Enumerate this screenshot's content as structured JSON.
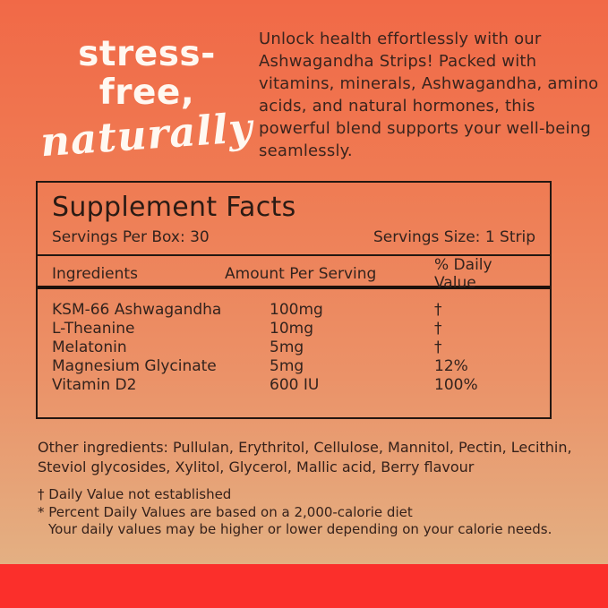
{
  "hero": {
    "headline_line1": "stress-free,",
    "headline_line2": "naturally",
    "description": "Unlock health effortlessly with our Ashwagandha Strips! Packed with vitamins, minerals, Ashwagandha, amino acids, and natural hormones, this powerful blend supports your well-being seamlessly."
  },
  "supplement_facts": {
    "title": "Supplement Facts",
    "servings_per_box": "Servings Per Box: 30",
    "serving_size": "Servings Size: 1 Strip",
    "columns": [
      "Ingredients",
      "Amount Per Serving",
      "% Daily Value"
    ],
    "rows": [
      {
        "ingredient": "KSM-66 Ashwagandha",
        "amount": "100mg",
        "daily_value": "†"
      },
      {
        "ingredient": "L-Theanine",
        "amount": "10mg",
        "daily_value": "†"
      },
      {
        "ingredient": "Melatonin",
        "amount": "5mg",
        "daily_value": "†"
      },
      {
        "ingredient": "Magnesium Glycinate",
        "amount": "5mg",
        "daily_value": "12%"
      },
      {
        "ingredient": "Vitamin D2",
        "amount": "600 IU",
        "daily_value": "100%"
      }
    ]
  },
  "other_ingredients": "Other ingredients: Pullulan, Erythritol, Cellulose, Mannitol, Pectin, Lecithin, Steviol glycosides, Xylitol, Glycerol, Mallic acid, Berry flavour",
  "footnotes": {
    "dagger_note": "† Daily Value not established",
    "asterisk_note_line1": "* Percent Daily Values are based on a 2,000-calorie diet",
    "asterisk_note_line2": "Your daily values may be higher or lower depending on your calorie needs."
  },
  "colors": {
    "gradient_top": "#F16947",
    "gradient_bottom": "#E3B184",
    "accent_red": "#FB2F2B",
    "text_dark": "#33231D",
    "text_white": "#FFF8F1",
    "border_dark": "#241711"
  }
}
